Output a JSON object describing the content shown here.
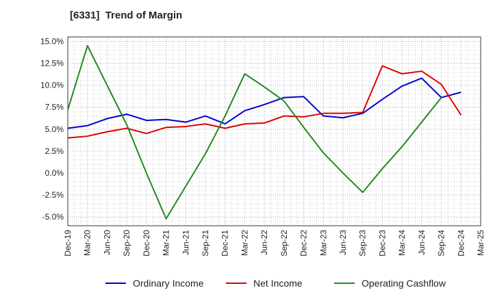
{
  "chart_data": {
    "type": "line",
    "title": "[6331]  Trend of Margin",
    "xlabel": "",
    "ylabel": "",
    "ylim": [
      -6.0,
      15.5
    ],
    "y_ticks": [
      "15.0%",
      "12.5%",
      "10.0%",
      "7.5%",
      "5.0%",
      "2.5%",
      "0.0%",
      "-2.5%",
      "-5.0%"
    ],
    "y_tick_values": [
      15.0,
      12.5,
      10.0,
      7.5,
      5.0,
      2.5,
      0.0,
      -2.5,
      -5.0
    ],
    "categories": [
      "Dec-19",
      "Mar-20",
      "Jun-20",
      "Sep-20",
      "Dec-20",
      "Mar-21",
      "Jun-21",
      "Sep-21",
      "Dec-21",
      "Mar-22",
      "Jun-22",
      "Sep-22",
      "Dec-22",
      "Mar-23",
      "Jun-23",
      "Sep-23",
      "Dec-23",
      "Mar-24",
      "Jun-24",
      "Sep-24",
      "Dec-24",
      "Mar-25"
    ],
    "grid": true,
    "legend_position": "bottom",
    "series": [
      {
        "name": "Ordinary Income",
        "color": "#0000cc",
        "values": [
          5.1,
          5.4,
          6.2,
          6.7,
          6.0,
          6.1,
          5.8,
          6.5,
          5.6,
          7.1,
          7.8,
          8.6,
          8.7,
          6.5,
          6.3,
          6.8,
          8.4,
          9.9,
          10.8,
          8.6,
          9.2,
          null
        ]
      },
      {
        "name": "Net Income",
        "color": "#dd0000",
        "values": [
          4.0,
          4.2,
          4.7,
          5.1,
          4.5,
          5.2,
          5.3,
          5.6,
          5.1,
          5.6,
          5.7,
          6.5,
          6.4,
          6.8,
          6.8,
          6.9,
          12.2,
          11.3,
          11.6,
          10.1,
          6.6,
          null
        ]
      },
      {
        "name": "Operating Cashflow",
        "color": "#228822",
        "values": [
          7.2,
          14.5,
          10.0,
          5.5,
          0.0,
          -5.2,
          -1.5,
          2.2,
          6.5,
          11.3,
          9.8,
          8.2,
          5.2,
          2.3,
          0.0,
          -2.2,
          0.5,
          3.0,
          5.8,
          8.6,
          null,
          null
        ]
      }
    ]
  }
}
